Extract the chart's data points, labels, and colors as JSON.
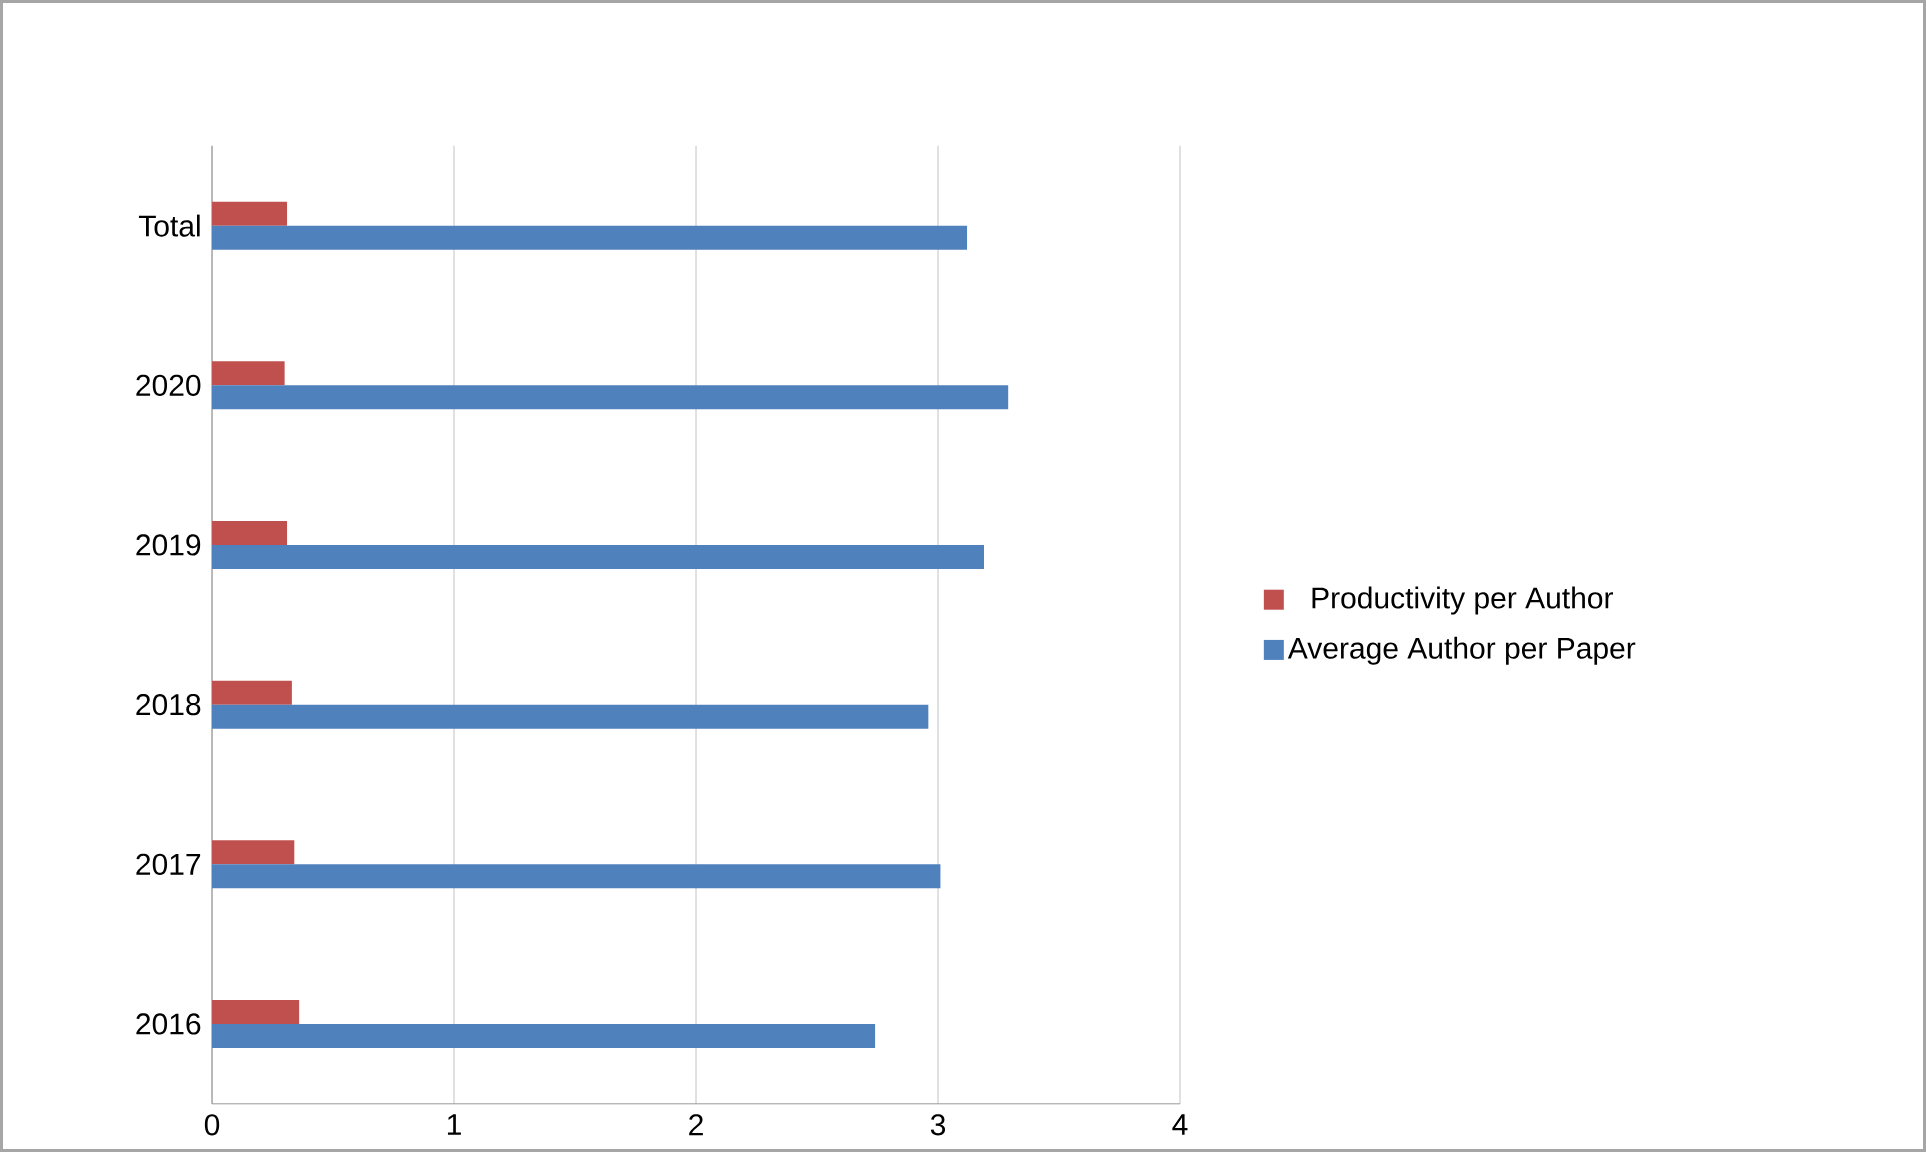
{
  "chart_data": {
    "type": "bar",
    "orientation": "horizontal",
    "categories": [
      "Total",
      "2020",
      "2019",
      "2018",
      "2017",
      "2016"
    ],
    "series": [
      {
        "name": "Productivity per Author",
        "color": "#c0504d",
        "values": [
          0.31,
          0.3,
          0.31,
          0.33,
          0.34,
          0.36
        ]
      },
      {
        "name": "Average Author per Paper",
        "color": "#4f81bd",
        "values": [
          3.12,
          3.29,
          3.19,
          2.96,
          3.01,
          2.74
        ]
      }
    ],
    "xlim": [
      0,
      4
    ],
    "xticks": [
      0,
      1,
      2,
      3,
      4
    ],
    "grid": "x",
    "legend": "right"
  }
}
